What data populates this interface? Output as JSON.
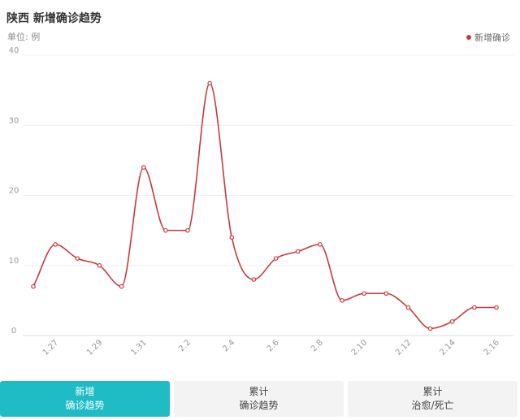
{
  "header": {
    "title": "陕西 新增确诊趋势",
    "unit": "单位: 例"
  },
  "chart_data": {
    "type": "line",
    "title": "陕西 新增确诊趋势",
    "ylabel": "单位: 例",
    "ylim": [
      0,
      40
    ],
    "yticks": [
      "0",
      "10",
      "20",
      "30",
      "40"
    ],
    "grid": true,
    "legend_position": "top-right",
    "x": [
      "1.26",
      "1.27",
      "1.28",
      "1.29",
      "1.30",
      "1.31",
      "2.1",
      "2.2",
      "2.3",
      "2.4",
      "2.5",
      "2.6",
      "2.7",
      "2.8",
      "2.9",
      "2.10",
      "2.11",
      "2.12",
      "2.13",
      "2.14",
      "2.15",
      "2.16"
    ],
    "xtick_labels": [
      "1.27",
      "1.29",
      "1.31",
      "2.2",
      "2.4",
      "2.6",
      "2.8",
      "2.10",
      "2.12",
      "2.14",
      "2.16"
    ],
    "series": [
      {
        "name": "新增确诊",
        "color": "#c8383f",
        "values": [
          7,
          13,
          11,
          10,
          7,
          24,
          15,
          15,
          36,
          14,
          8,
          11,
          12,
          13,
          5,
          6,
          6,
          4,
          1,
          2,
          4,
          4
        ]
      }
    ]
  },
  "tabs": [
    {
      "line1": "新增",
      "line2": "确诊趋势",
      "active": true
    },
    {
      "line1": "累计",
      "line2": "确诊趋势",
      "active": false
    },
    {
      "line1": "累计",
      "line2": "治愈/死亡",
      "active": false
    }
  ],
  "colors": {
    "accent": "#1fbcc5",
    "series": "#c8383f"
  }
}
